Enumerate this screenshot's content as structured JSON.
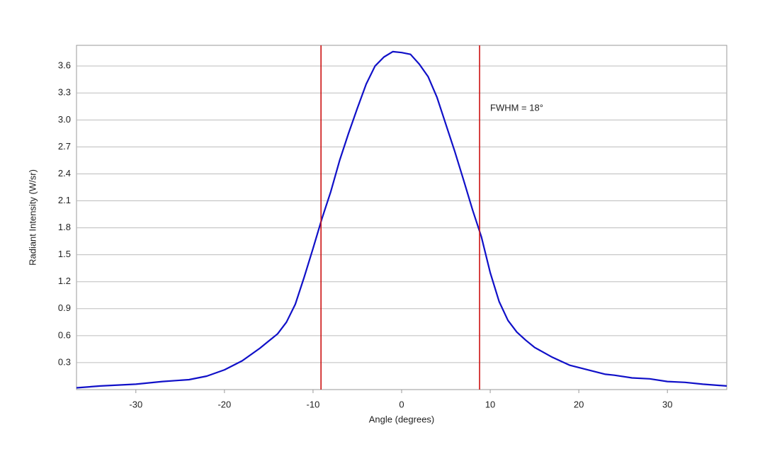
{
  "chart_data": {
    "type": "line",
    "x_label": "Angle (degrees)",
    "y_label": "Radiant Intensity (W/sr)",
    "annotation": "FWHM = 18°",
    "x": [
      -36.7,
      -34,
      -30,
      -27,
      -24,
      -22,
      -20,
      -18,
      -16,
      -14,
      -13,
      -12,
      -11,
      -10,
      -9,
      -8,
      -7,
      -6,
      -5,
      -4,
      -3,
      -2,
      -1,
      0,
      1,
      2,
      3,
      4,
      5,
      6,
      7,
      8,
      9,
      10,
      11,
      12,
      13,
      14,
      15,
      17,
      19,
      21,
      23,
      24,
      26,
      28,
      30,
      32,
      34,
      36.7
    ],
    "series": [
      {
        "color": "#1010c8",
        "values": [
          0.02,
          0.04,
          0.06,
          0.09,
          0.11,
          0.15,
          0.22,
          0.32,
          0.46,
          0.62,
          0.75,
          0.95,
          1.25,
          1.57,
          1.9,
          2.2,
          2.55,
          2.85,
          3.13,
          3.4,
          3.6,
          3.7,
          3.76,
          3.75,
          3.73,
          3.62,
          3.48,
          3.25,
          2.95,
          2.65,
          2.33,
          2.0,
          1.7,
          1.3,
          0.98,
          0.77,
          0.64,
          0.55,
          0.47,
          0.36,
          0.27,
          0.22,
          0.17,
          0.16,
          0.13,
          0.12,
          0.09,
          0.08,
          0.06,
          0.04
        ]
      }
    ],
    "vlines": [
      -9.1,
      8.8
    ],
    "vline_color": "#cc1111",
    "xlim": [
      -36.7,
      36.7
    ],
    "xticks": [
      -30,
      -20,
      -10,
      0,
      10,
      20,
      30
    ],
    "ylim": [
      0,
      3.83
    ],
    "yticks": [
      0.3,
      0.6,
      0.9,
      1.2,
      1.5,
      1.8,
      2.1,
      2.4,
      2.7,
      {
        "value": 3,
        "label": "3.0"
      },
      3.3,
      3.6
    ],
    "grid": true
  }
}
